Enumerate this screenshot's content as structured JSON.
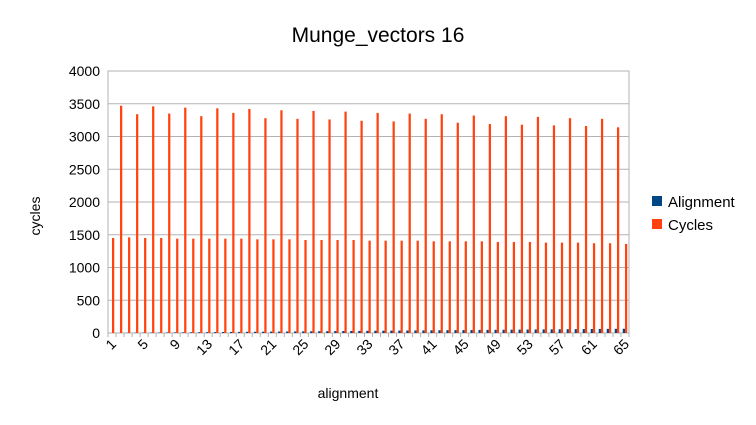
{
  "chart_data": {
    "type": "bar",
    "title": "Munge_vectors 16",
    "xlabel": "alignment",
    "ylabel": "cycles",
    "ylim": [
      0,
      4000
    ],
    "yticks": [
      0,
      500,
      1000,
      1500,
      2000,
      2500,
      3000,
      3500,
      4000
    ],
    "grid": "horizontal",
    "legend_position": "right",
    "categories": [
      1,
      2,
      3,
      4,
      5,
      6,
      7,
      8,
      9,
      10,
      11,
      12,
      13,
      14,
      15,
      16,
      17,
      18,
      19,
      20,
      21,
      22,
      23,
      24,
      25,
      26,
      27,
      28,
      29,
      30,
      31,
      32,
      33,
      34,
      35,
      36,
      37,
      38,
      39,
      40,
      41,
      42,
      43,
      44,
      45,
      46,
      47,
      48,
      49,
      50,
      51,
      52,
      53,
      54,
      55,
      56,
      57,
      58,
      59,
      60,
      61,
      62,
      63,
      64,
      65
    ],
    "xtick_labels": [
      "1",
      "5",
      "9",
      "13",
      "17",
      "21",
      "25",
      "29",
      "33",
      "37",
      "41",
      "45",
      "49",
      "53",
      "57",
      "61",
      "65"
    ],
    "series": [
      {
        "name": "Alignment",
        "color": "#004586",
        "values": [
          1,
          2,
          3,
          4,
          5,
          6,
          7,
          8,
          9,
          10,
          11,
          12,
          13,
          14,
          15,
          16,
          17,
          18,
          19,
          20,
          21,
          22,
          23,
          24,
          25,
          26,
          27,
          28,
          29,
          30,
          31,
          32,
          33,
          34,
          35,
          36,
          37,
          38,
          39,
          40,
          41,
          42,
          43,
          44,
          45,
          46,
          47,
          48,
          49,
          50,
          51,
          52,
          53,
          54,
          55,
          56,
          57,
          58,
          59,
          60,
          61,
          62,
          63,
          64,
          65
        ]
      },
      {
        "name": "Cycles",
        "color": "#ff420e",
        "values": [
          1450,
          3470,
          1460,
          3340,
          1450,
          3460,
          1450,
          3350,
          1440,
          3440,
          1440,
          3310,
          1440,
          3430,
          1440,
          3360,
          1440,
          3420,
          1430,
          3280,
          1430,
          3400,
          1430,
          3270,
          1420,
          3390,
          1420,
          3260,
          1420,
          3380,
          1420,
          3240,
          1410,
          3360,
          1410,
          3230,
          1410,
          3350,
          1410,
          3270,
          1400,
          3340,
          1400,
          3210,
          1400,
          3320,
          1400,
          3190,
          1390,
          3310,
          1390,
          3180,
          1390,
          3300,
          1380,
          3170,
          1380,
          3280,
          1380,
          3160,
          1370,
          3270,
          1370,
          3140,
          1360
        ]
      }
    ]
  }
}
